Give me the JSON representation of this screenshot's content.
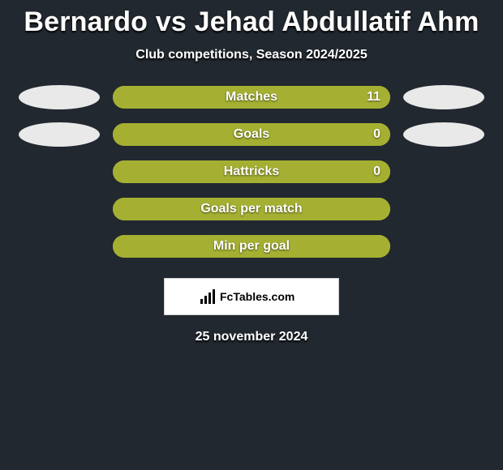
{
  "title": "Bernardo vs Jehad Abdullatif Ahm",
  "subtitle": "Club competitions, Season 2024/2025",
  "colors": {
    "background": "#21282f",
    "bar_bg": "#aea72e",
    "bar_fill": "#a5b032",
    "ellipse": "#e9e9e9",
    "text": "#ffffff"
  },
  "stats": [
    {
      "label": "Matches",
      "value": "11",
      "fill_pct": 100,
      "left_ellipse": true,
      "right_ellipse": true
    },
    {
      "label": "Goals",
      "value": "0",
      "fill_pct": 100,
      "left_ellipse": true,
      "right_ellipse": true
    },
    {
      "label": "Hattricks",
      "value": "0",
      "fill_pct": 100,
      "left_ellipse": false,
      "right_ellipse": false
    },
    {
      "label": "Goals per match",
      "value": "",
      "fill_pct": 100,
      "left_ellipse": false,
      "right_ellipse": false
    },
    {
      "label": "Min per goal",
      "value": "",
      "fill_pct": 100,
      "left_ellipse": false,
      "right_ellipse": false
    }
  ],
  "logo_text": "FcTables.com",
  "date": "25 november 2024"
}
